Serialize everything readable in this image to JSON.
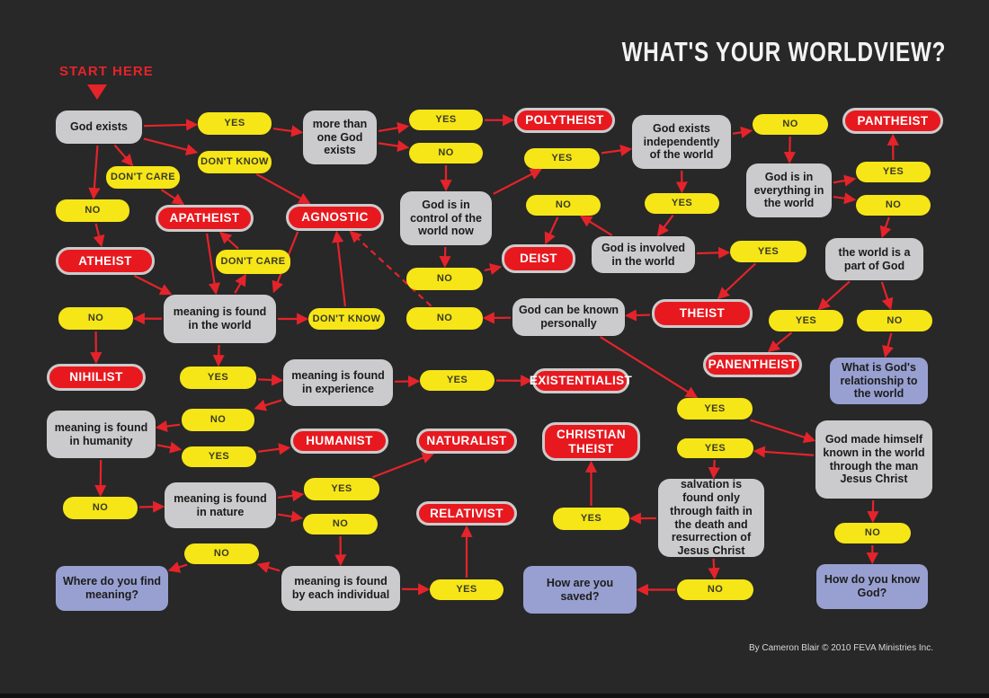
{
  "title": "WHAT'S YOUR WORLDVIEW?",
  "start_here": "START HERE",
  "credit": "By Cameron Blair © 2010 FEVA Ministries Inc.",
  "colors": {
    "background": "#282828",
    "statement_box": "#cbcbcd",
    "answer_box": "#f6e617",
    "worldview_box": "#e7191f",
    "terminal_question_box": "#98a0d1",
    "arrow": "#e5232a",
    "title_text": "#f3f3f3"
  },
  "nodes": {
    "god_exists": {
      "label": "God exists",
      "type": "statement"
    },
    "yes_1": {
      "label": "YES",
      "type": "answer"
    },
    "more_than_one": {
      "label": "more than one God exists",
      "type": "statement"
    },
    "dont_know_1": {
      "label": "DON'T KNOW",
      "type": "answer"
    },
    "dont_care_1": {
      "label": "DON'T CARE",
      "type": "answer"
    },
    "no_1": {
      "label": "NO",
      "type": "answer"
    },
    "apatheist": {
      "label": "APATHEIST",
      "type": "worldview"
    },
    "agnostic": {
      "label": "AGNOSTIC",
      "type": "worldview"
    },
    "atheist": {
      "label": "ATHEIST",
      "type": "worldview"
    },
    "yes_poly": {
      "label": "YES",
      "type": "answer"
    },
    "no_poly": {
      "label": "NO",
      "type": "answer"
    },
    "polytheist": {
      "label": "POLYTHEIST",
      "type": "worldview"
    },
    "god_control": {
      "label": "God is in control of the world now",
      "type": "statement"
    },
    "yes_control": {
      "label": "YES",
      "type": "answer"
    },
    "god_indep": {
      "label": "God exists independently of the world",
      "type": "statement"
    },
    "no_indep": {
      "label": "NO",
      "type": "answer"
    },
    "pantheist": {
      "label": "PANTHEIST",
      "type": "worldview"
    },
    "god_everything": {
      "label": "God is in everything in the world",
      "type": "statement"
    },
    "yes_pantheist": {
      "label": "YES",
      "type": "answer"
    },
    "no_everything": {
      "label": "NO",
      "type": "answer"
    },
    "yes_indep": {
      "label": "YES",
      "type": "answer"
    },
    "no_involved": {
      "label": "NO",
      "type": "answer"
    },
    "deist": {
      "label": "DEIST",
      "type": "worldview"
    },
    "god_involved": {
      "label": "God is involved in the world",
      "type": "statement"
    },
    "yes_involved": {
      "label": "YES",
      "type": "answer"
    },
    "world_part": {
      "label": "the world is a part of God",
      "type": "statement"
    },
    "no_control": {
      "label": "NO",
      "type": "answer"
    },
    "no_known": {
      "label": "NO",
      "type": "answer"
    },
    "god_known": {
      "label": "God can be known personally",
      "type": "statement"
    },
    "theist": {
      "label": "THEIST",
      "type": "worldview"
    },
    "yes_panen": {
      "label": "YES",
      "type": "answer"
    },
    "no_part": {
      "label": "NO",
      "type": "answer"
    },
    "panentheist": {
      "label": "PANENTHEIST",
      "type": "worldview"
    },
    "what_relationship": {
      "label": "What is God's relationship to the world",
      "type": "terminal"
    },
    "meaning_world": {
      "label": "meaning is found in the world",
      "type": "statement"
    },
    "no_world": {
      "label": "NO",
      "type": "answer"
    },
    "dont_know_2": {
      "label": "DON'T KNOW",
      "type": "answer"
    },
    "dont_care_2": {
      "label": "DON'T CARE",
      "type": "answer"
    },
    "nihilist": {
      "label": "NIHILIST",
      "type": "worldview"
    },
    "yes_world": {
      "label": "YES",
      "type": "answer"
    },
    "meaning_experience": {
      "label": "meaning is found in experience",
      "type": "statement"
    },
    "yes_exist": {
      "label": "YES",
      "type": "answer"
    },
    "existentialist": {
      "label": "EXISTENTIALIST",
      "type": "worldview"
    },
    "no_experience": {
      "label": "NO",
      "type": "answer"
    },
    "meaning_humanity": {
      "label": "meaning is found in humanity",
      "type": "statement"
    },
    "yes_humanist": {
      "label": "YES",
      "type": "answer"
    },
    "humanist": {
      "label": "HUMANIST",
      "type": "worldview"
    },
    "no_humanity": {
      "label": "NO",
      "type": "answer"
    },
    "meaning_nature": {
      "label": "meaning is found in nature",
      "type": "statement"
    },
    "yes_naturalist": {
      "label": "YES",
      "type": "answer"
    },
    "naturalist": {
      "label": "NATURALIST",
      "type": "worldview"
    },
    "no_nature": {
      "label": "NO",
      "type": "answer"
    },
    "meaning_individual": {
      "label": "meaning is found by each individual",
      "type": "statement"
    },
    "yes_relativist": {
      "label": "YES",
      "type": "answer"
    },
    "relativist": {
      "label": "RELATIVIST",
      "type": "worldview"
    },
    "no_individual": {
      "label": "NO",
      "type": "answer"
    },
    "where_meaning": {
      "label": "Where do you find meaning?",
      "type": "terminal"
    },
    "christian_theist": {
      "label": "CHRISTIAN THEIST",
      "type": "worldview"
    },
    "yes_known": {
      "label": "YES",
      "type": "answer"
    },
    "god_made": {
      "label": "God made himself known in the world through the man Jesus Christ",
      "type": "statement"
    },
    "yes_made": {
      "label": "YES",
      "type": "answer"
    },
    "salvation": {
      "label": "salvation is found only through faith in the death and resurrection of Jesus Christ",
      "type": "statement"
    },
    "yes_salvation": {
      "label": "YES",
      "type": "answer"
    },
    "no_salvation": {
      "label": "NO",
      "type": "answer"
    },
    "how_saved": {
      "label": "How are you saved?",
      "type": "terminal"
    },
    "no_made": {
      "label": "NO",
      "type": "answer"
    },
    "how_know_god": {
      "label": "How do you know God?",
      "type": "terminal"
    }
  },
  "edges": [
    {
      "from": "god_exists",
      "to": "yes_1"
    },
    {
      "from": "yes_1",
      "to": "more_than_one"
    },
    {
      "from": "god_exists",
      "to": "dont_know_1"
    },
    {
      "from": "god_exists",
      "to": "dont_care_1"
    },
    {
      "from": "god_exists",
      "to": "no_1"
    },
    {
      "from": "no_1",
      "to": "atheist"
    },
    {
      "from": "dont_care_1",
      "to": "apatheist"
    },
    {
      "from": "dont_know_1",
      "to": "agnostic"
    },
    {
      "from": "more_than_one",
      "to": "yes_poly"
    },
    {
      "from": "yes_poly",
      "to": "polytheist"
    },
    {
      "from": "more_than_one",
      "to": "no_poly"
    },
    {
      "from": "no_poly",
      "to": "god_control"
    },
    {
      "from": "god_control",
      "to": "yes_control"
    },
    {
      "from": "yes_control",
      "to": "god_indep"
    },
    {
      "from": "god_control",
      "to": "no_control"
    },
    {
      "from": "no_control",
      "to": "deist"
    },
    {
      "from": "god_indep",
      "to": "no_indep"
    },
    {
      "from": "no_indep",
      "to": "god_everything"
    },
    {
      "from": "god_indep",
      "to": "yes_indep"
    },
    {
      "from": "yes_indep",
      "to": "god_involved"
    },
    {
      "from": "god_everything",
      "to": "yes_pantheist"
    },
    {
      "from": "yes_pantheist",
      "to": "pantheist"
    },
    {
      "from": "god_everything",
      "to": "no_everything"
    },
    {
      "from": "no_everything",
      "to": "world_part"
    },
    {
      "from": "god_involved",
      "to": "no_involved"
    },
    {
      "from": "no_involved",
      "to": "deist"
    },
    {
      "from": "god_involved",
      "to": "yes_involved"
    },
    {
      "from": "yes_involved",
      "to": "theist"
    },
    {
      "from": "world_part",
      "to": "yes_panen"
    },
    {
      "from": "yes_panen",
      "to": "panentheist"
    },
    {
      "from": "world_part",
      "to": "no_part"
    },
    {
      "from": "no_part",
      "to": "what_relationship"
    },
    {
      "from": "theist",
      "to": "god_known"
    },
    {
      "from": "god_known",
      "to": "no_known"
    },
    {
      "from": "no_known",
      "to": "agnostic",
      "dashed": true
    },
    {
      "from": "god_known",
      "to": "yes_known"
    },
    {
      "from": "yes_known",
      "to": "god_made"
    },
    {
      "from": "god_made",
      "to": "yes_made"
    },
    {
      "from": "yes_made",
      "to": "salvation"
    },
    {
      "from": "salvation",
      "to": "yes_salvation"
    },
    {
      "from": "yes_salvation",
      "to": "christian_theist"
    },
    {
      "from": "salvation",
      "to": "no_salvation"
    },
    {
      "from": "no_salvation",
      "to": "how_saved"
    },
    {
      "from": "god_made",
      "to": "no_made"
    },
    {
      "from": "no_made",
      "to": "how_know_god"
    },
    {
      "from": "apatheist",
      "to": "meaning_world"
    },
    {
      "from": "agnostic",
      "to": "meaning_world",
      "fp": [
        332,
        256
      ],
      "tp": [
        304,
        326
      ]
    },
    {
      "from": "atheist",
      "to": "meaning_world"
    },
    {
      "from": "meaning_world",
      "to": "dont_care_2"
    },
    {
      "from": "dont_care_2",
      "to": "apatheist"
    },
    {
      "from": "meaning_world",
      "to": "dont_know_2"
    },
    {
      "from": "dont_know_2",
      "to": "agnostic"
    },
    {
      "from": "meaning_world",
      "to": "no_world"
    },
    {
      "from": "no_world",
      "to": "nihilist"
    },
    {
      "from": "meaning_world",
      "to": "yes_world"
    },
    {
      "from": "yes_world",
      "to": "meaning_experience"
    },
    {
      "from": "meaning_experience",
      "to": "yes_exist"
    },
    {
      "from": "yes_exist",
      "to": "existentialist"
    },
    {
      "from": "meaning_experience",
      "to": "no_experience"
    },
    {
      "from": "no_experience",
      "to": "meaning_humanity"
    },
    {
      "from": "meaning_humanity",
      "to": "yes_humanist"
    },
    {
      "from": "yes_humanist",
      "to": "humanist"
    },
    {
      "from": "meaning_humanity",
      "to": "no_humanity"
    },
    {
      "from": "no_humanity",
      "to": "meaning_nature"
    },
    {
      "from": "meaning_nature",
      "to": "yes_naturalist"
    },
    {
      "from": "yes_naturalist",
      "to": "naturalist"
    },
    {
      "from": "meaning_nature",
      "to": "no_nature"
    },
    {
      "from": "no_nature",
      "to": "meaning_individual"
    },
    {
      "from": "meaning_individual",
      "to": "yes_relativist"
    },
    {
      "from": "yes_relativist",
      "to": "relativist"
    },
    {
      "from": "meaning_individual",
      "to": "no_individual"
    },
    {
      "from": "no_individual",
      "to": "where_meaning"
    }
  ]
}
